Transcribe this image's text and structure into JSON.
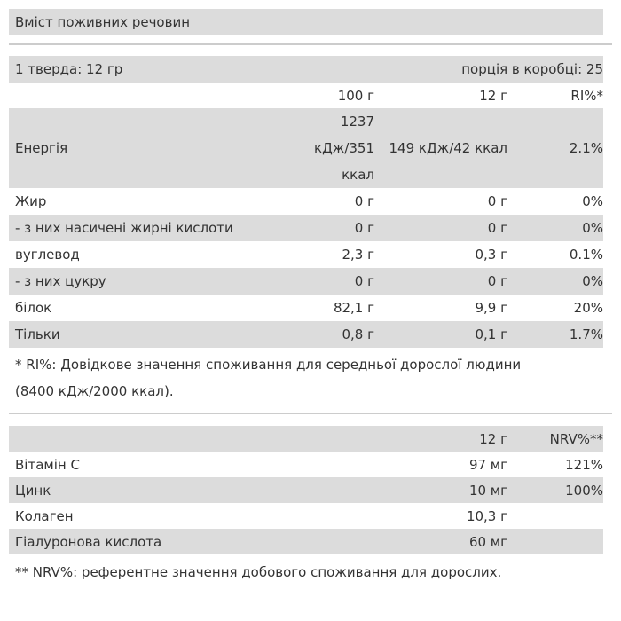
{
  "header": {
    "title": "Вміст поживних речовин"
  },
  "serving": {
    "size": "1 тверда: 12 гр",
    "per_box": "порція в коробці: 25"
  },
  "table": {
    "columns": [
      "100 г",
      "12 г",
      "RI%*"
    ],
    "rows": [
      [
        "Енергія",
        "1237 кДж/351 ккал",
        "149 кДж/42 ккал",
        "2.1%"
      ],
      [
        "Жир",
        "0 г",
        "0 г",
        "0%"
      ],
      [
        "- з них насичені жирні кислоти",
        "0 г",
        "0 г",
        "0%"
      ],
      [
        "вуглевод",
        "2,3 г",
        "0,3 г",
        "0.1%"
      ],
      [
        "- з них цукру",
        "0 г",
        "0 г",
        "0%"
      ],
      [
        "білок",
        "82,1 г",
        "9,9 г",
        "20%"
      ],
      [
        "Тільки",
        "0,8 г",
        "0,1 г",
        "1.7%"
      ]
    ]
  },
  "footnote": "* RI%: Довідкове значення споживання для середньої дорослої людини (8400 кДж/2000 ккал).",
  "table2": {
    "columns": [
      "12 г",
      "NRV%**"
    ],
    "rows": [
      [
        "Вітамін C",
        "97 мг",
        "121%"
      ],
      [
        "Цинк",
        "10 мг",
        "100%"
      ],
      [
        "Колаген",
        "10,3 г",
        null
      ],
      [
        "Гіалуронова кислота",
        "60 мг",
        null
      ]
    ]
  },
  "footnote2": "** NRV%: референтне значення добового споживання для дорослих."
}
